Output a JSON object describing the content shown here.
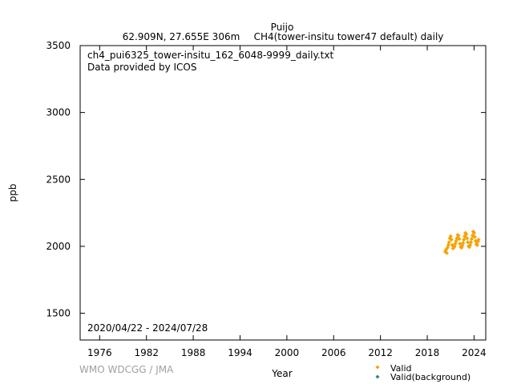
{
  "header": {
    "station": "Puijo",
    "location": "62.909N, 27.655E 306m",
    "dataset": "CH4(tower-insitu tower47 default) daily"
  },
  "annotations": {
    "filename": "ch4_pui6325_tower-insitu_162_6048-9999_daily.txt",
    "provider": "Data provided by ICOS",
    "date_range": "2020/04/22 - 2024/07/28",
    "watermark": "WMO WDCGG / JMA"
  },
  "chart_data": {
    "type": "scatter",
    "xlabel": "Year",
    "ylabel": "ppb",
    "xlim": [
      1973.5,
      2025.5
    ],
    "ylim": [
      1300,
      3500
    ],
    "x_ticks": [
      1976,
      1982,
      1988,
      1994,
      2000,
      2006,
      2012,
      2018,
      2024
    ],
    "y_ticks": [
      1500,
      2000,
      2500,
      3000,
      3500
    ],
    "grid": false,
    "legend_position": "bottom-right",
    "series": [
      {
        "name": "Valid",
        "color": "#f5a300",
        "marker": "diamond",
        "x": [
          2020.31,
          2020.4,
          2020.5,
          2020.6,
          2020.7,
          2020.8,
          2020.9,
          2021.0,
          2021.1,
          2021.2,
          2021.3,
          2021.4,
          2021.5,
          2021.6,
          2021.7,
          2021.8,
          2021.9,
          2022.0,
          2022.1,
          2022.2,
          2022.3,
          2022.4,
          2022.5,
          2022.6,
          2022.7,
          2022.8,
          2022.9,
          2023.0,
          2023.1,
          2023.2,
          2023.3,
          2023.4,
          2023.5,
          2023.6,
          2023.7,
          2023.8,
          2023.9,
          2024.0,
          2024.1,
          2024.2,
          2024.3,
          2024.4,
          2024.5,
          2024.57
        ],
        "y": [
          1960,
          1975,
          1950,
          1990,
          2010,
          2030,
          2060,
          2075,
          2050,
          2010,
          1985,
          1990,
          2000,
          2020,
          2040,
          2060,
          2085,
          2080,
          2055,
          2020,
          1995,
          1990,
          2005,
          2025,
          2050,
          2075,
          2100,
          2090,
          2060,
          2030,
          2000,
          1995,
          2010,
          2030,
          2055,
          2080,
          2110,
          2100,
          2070,
          2040,
          2015,
          2010,
          2035,
          2050
        ]
      },
      {
        "name": "Valid(background)",
        "color": "#2e8b6e",
        "marker": "diamond",
        "x": [],
        "y": []
      }
    ]
  }
}
